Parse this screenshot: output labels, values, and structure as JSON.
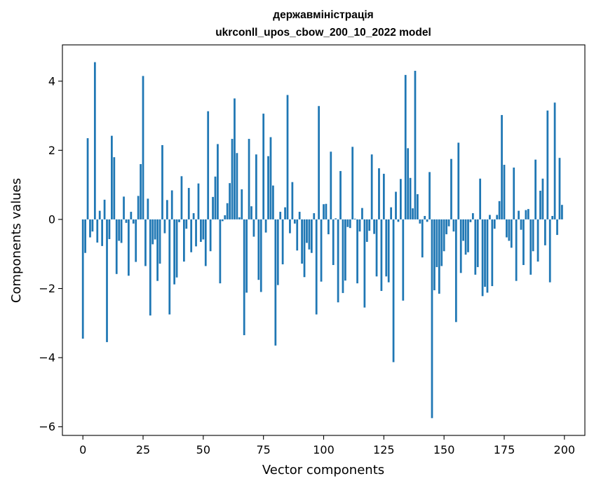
{
  "chart_data": {
    "type": "bar",
    "title_line1": "державміністрація",
    "title_line2": "ukrconll_upos_cbow_200_10_2022 model",
    "xlabel": "Vector components",
    "ylabel": "Components values",
    "xlim": [
      -8.5,
      208.5
    ],
    "ylim": [
      -6.25,
      5.05
    ],
    "x_ticks": [
      0,
      25,
      50,
      75,
      100,
      125,
      150,
      175,
      200
    ],
    "x_tick_labels": [
      "0",
      "25",
      "50",
      "75",
      "100",
      "125",
      "150",
      "175",
      "200"
    ],
    "y_ticks": [
      -6,
      -4,
      -2,
      0,
      2,
      4
    ],
    "y_tick_labels": [
      "−6",
      "−4",
      "−2",
      "0",
      "2",
      "4"
    ],
    "bar_color": "#1f77b4",
    "values": [
      -3.45,
      -0.97,
      2.35,
      -0.52,
      -0.35,
      4.55,
      -0.67,
      0.25,
      -0.77,
      0.57,
      -3.55,
      -0.57,
      2.42,
      1.8,
      -1.58,
      -0.62,
      -0.68,
      0.66,
      -0.1,
      -1.63,
      0.22,
      -0.12,
      -1.23,
      0.68,
      1.6,
      4.15,
      -1.35,
      0.6,
      -2.78,
      -0.72,
      -0.58,
      -1.78,
      -1.28,
      2.15,
      -0.4,
      0.56,
      -2.75,
      0.84,
      -1.88,
      -1.68,
      -0.08,
      1.25,
      -1.22,
      -0.27,
      0.91,
      -0.95,
      0.18,
      -0.78,
      1.04,
      -0.65,
      -0.58,
      -1.35,
      3.13,
      -0.92,
      0.65,
      1.24,
      2.18,
      -1.85,
      -0.05,
      0.12,
      0.47,
      1.05,
      2.33,
      3.5,
      1.92,
      0.06,
      0.87,
      -3.35,
      -2.12,
      2.33,
      0.38,
      -0.5,
      1.88,
      -1.75,
      -2.1,
      3.06,
      -0.38,
      1.83,
      2.38,
      0.98,
      -3.65,
      -1.9,
      0.22,
      -1.3,
      0.35,
      3.6,
      -0.4,
      1.08,
      -0.12,
      -0.9,
      0.22,
      -1.28,
      -1.67,
      -0.68,
      -0.87,
      -0.97,
      0.18,
      -2.75,
      3.28,
      -1.8,
      0.44,
      0.45,
      -0.43,
      1.96,
      -1.32,
      0.03,
      -2.4,
      1.4,
      -2.13,
      -1.77,
      -0.22,
      -0.25,
      2.1,
      0.02,
      -1.85,
      -0.35,
      0.33,
      -2.55,
      -0.65,
      -0.33,
      1.88,
      -0.42,
      -1.65,
      1.48,
      -2.07,
      1.32,
      -1.65,
      -1.82,
      0.35,
      -4.13,
      0.8,
      -0.07,
      1.17,
      -2.35,
      4.18,
      2.06,
      1.2,
      0.32,
      4.3,
      0.73,
      -0.12,
      -1.1,
      0.1,
      -0.07,
      1.37,
      -5.75,
      -2.05,
      -1.38,
      -2.15,
      -1.35,
      -0.92,
      -0.43,
      -0.2,
      1.75,
      -0.35,
      -2.97,
      2.22,
      -1.55,
      -0.62,
      -1.02,
      -0.95,
      -0.08,
      0.18,
      -1.6,
      -1.38,
      1.18,
      -2.22,
      -1.95,
      -2.12,
      0.13,
      -1.93,
      -0.27,
      0.13,
      0.53,
      3.02,
      1.58,
      -0.52,
      -0.62,
      -0.82,
      1.5,
      -1.78,
      0.25,
      -0.3,
      -1.32,
      0.27,
      0.3,
      -1.6,
      -0.92,
      1.73,
      -1.22,
      0.83,
      1.18,
      -0.75,
      3.15,
      -1.82,
      0.1,
      3.38,
      -0.45,
      1.78,
      0.42
    ]
  }
}
